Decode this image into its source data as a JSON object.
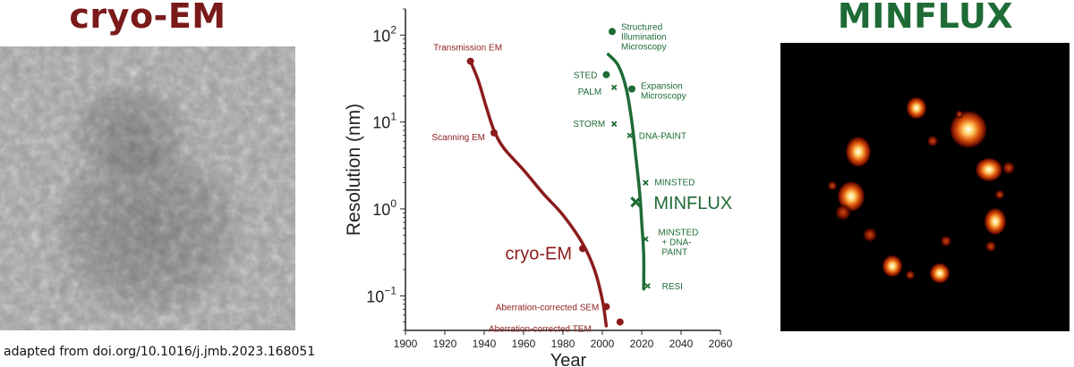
{
  "left_panel": {
    "title": "cryo-EM",
    "title_color": "#7a1a1a"
  },
  "right_panel": {
    "title": "MINFLUX",
    "title_color": "#1e6b36"
  },
  "source_caption": "adapted from doi.org/10.1016/j.jmb.2023.168051",
  "colors": {
    "em": "#8b1c1c",
    "light": "#1e6b36"
  },
  "chart_data": {
    "type": "scatter",
    "xlabel": "Year",
    "ylabel": "Resolution (nm)",
    "xlim": [
      1900,
      2060
    ],
    "ylim": [
      0.04,
      200
    ],
    "y_scale": "log",
    "xticks": [
      1900,
      1920,
      1940,
      1960,
      1980,
      2000,
      2020,
      2040,
      2060
    ],
    "yticks": [
      {
        "value": 100,
        "base": "10",
        "exp": "2"
      },
      {
        "value": 10,
        "base": "10",
        "exp": "1"
      },
      {
        "value": 1,
        "base": "10",
        "exp": "0"
      },
      {
        "value": 0.1,
        "base": "10",
        "exp": "−1"
      }
    ],
    "series": [
      {
        "name": "cryo-EM",
        "color": "#8b1c1c",
        "curve": [
          [
            1933,
            50
          ],
          [
            1937,
            30
          ],
          [
            1941,
            15
          ],
          [
            1945,
            8
          ],
          [
            1950,
            5
          ],
          [
            1960,
            2.8
          ],
          [
            1970,
            1.5
          ],
          [
            1980,
            0.85
          ],
          [
            1990,
            0.4
          ],
          [
            1996,
            0.2
          ],
          [
            2000,
            0.09
          ],
          [
            2002,
            0.045
          ]
        ],
        "points": [
          {
            "label": "Transmission EM",
            "x": 1933,
            "y": 50,
            "marker": "circle"
          },
          {
            "label": "Scanning EM",
            "x": 1945,
            "y": 7.5,
            "marker": "circle"
          },
          {
            "label": "cryo-EM",
            "x": 1990,
            "y": 0.35,
            "marker": "circle"
          },
          {
            "label": "Aberration-corrected SEM",
            "x": 2002,
            "y": 0.075,
            "marker": "circle"
          },
          {
            "label": "Aberration-corrected TEM",
            "x": 2009,
            "y": 0.05,
            "marker": "circle"
          }
        ]
      },
      {
        "name": "MINFLUX",
        "color": "#1e6b36",
        "curve": [
          [
            2003,
            60
          ],
          [
            2008,
            45
          ],
          [
            2012,
            25
          ],
          [
            2015,
            10
          ],
          [
            2017,
            4
          ],
          [
            2019,
            1.5
          ],
          [
            2020,
            0.7
          ],
          [
            2021,
            0.3
          ],
          [
            2021,
            0.12
          ]
        ],
        "points": [
          {
            "label": "Structured Illumination Microscopy",
            "x": 2005,
            "y": 110,
            "marker": "circle"
          },
          {
            "label": "STED",
            "x": 2002,
            "y": 35,
            "marker": "circle"
          },
          {
            "label": "PALM",
            "x": 2006,
            "y": 25,
            "marker": "cross"
          },
          {
            "label": "Expansion Microscopy",
            "x": 2015,
            "y": 24,
            "marker": "circle"
          },
          {
            "label": "STORM",
            "x": 2006,
            "y": 9.5,
            "marker": "cross"
          },
          {
            "label": "DNA-PAINT",
            "x": 2014,
            "y": 7,
            "marker": "cross"
          },
          {
            "label": "MINSTED",
            "x": 2022,
            "y": 2,
            "marker": "cross"
          },
          {
            "label": "MINFLUX",
            "x": 2017,
            "y": 1.2,
            "marker": "big-cross"
          },
          {
            "label": "MINSTED + DNA-PAINT",
            "x": 2022,
            "y": 0.45,
            "marker": "cross"
          },
          {
            "label": "RESI",
            "x": 2023,
            "y": 0.13,
            "marker": "cross"
          }
        ]
      }
    ]
  }
}
